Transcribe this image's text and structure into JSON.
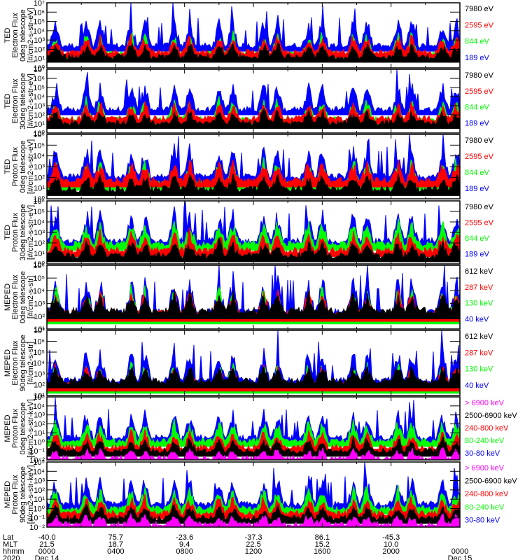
{
  "chart_data": {
    "type": "line",
    "title": "",
    "x_rows": [
      {
        "name": "Lat",
        "values": [
          "-40.0",
          "75.7",
          "-23.6",
          "-37.3",
          "86.1",
          "-45.3",
          ""
        ]
      },
      {
        "name": "MLT",
        "values": [
          "21.5",
          "18.7",
          "9.4",
          "22.5",
          "15.2",
          "10.0",
          ""
        ]
      },
      {
        "name": "hhmm",
        "values": [
          "0000",
          "0400",
          "0800",
          "1200",
          "1600",
          "2000",
          "0000"
        ]
      },
      {
        "name": "2020",
        "values": [
          "Dec 14",
          "",
          "",
          "",
          "",
          "",
          "Dec 15"
        ]
      }
    ],
    "x_hours": [
      0,
      4,
      8,
      12,
      16,
      20,
      24
    ],
    "xlim": [
      0,
      24
    ],
    "panels": [
      {
        "ylabel": [
          "TED",
          "Electron Flux",
          "0deg telescope",
          "[#/cm2-s-str-eV]"
        ],
        "ylim_exp": [
          0,
          7
        ],
        "ticks": [
          "10⁰",
          "10¹",
          "10²",
          "10³",
          "10⁴",
          "10⁵",
          "10⁶",
          "10⁷"
        ],
        "legend": [
          {
            "label": "7980 eV",
            "color": "#000000"
          },
          {
            "label": "2595 eV",
            "color": "#ff0000"
          },
          {
            "label": "844 eV",
            "color": "#00ff00"
          },
          {
            "label": "189 eV",
            "color": "#0000ff"
          }
        ],
        "base": {
          "blue": 2.4,
          "green": 1.5,
          "red": 1.7,
          "black": 1.2
        }
      },
      {
        "ylabel": [
          "TED",
          "Electron Flux",
          "30deg telescope",
          "[#/cm2-s-str-eV]"
        ],
        "ylim_exp": [
          0,
          7
        ],
        "ticks": [
          "10⁰",
          "10¹",
          "10²",
          "10³",
          "10⁴",
          "10⁵",
          "10⁶",
          "10⁷"
        ],
        "legend": [
          {
            "label": "7980 eV",
            "color": "#000000"
          },
          {
            "label": "2595 eV",
            "color": "#ff0000"
          },
          {
            "label": "844 eV",
            "color": "#00ff00"
          },
          {
            "label": "189 eV",
            "color": "#0000ff"
          }
        ],
        "base": {
          "blue": 2.6,
          "green": 1.5,
          "red": 1.6,
          "black": 1.1
        }
      },
      {
        "ylabel": [
          "TED",
          "Proton Flux",
          "0deg telescope",
          "[#/cm2-s-str-eV]"
        ],
        "ylim_exp": [
          0,
          6
        ],
        "ticks": [
          "10⁰",
          "10¹",
          "10²",
          "10³",
          "10⁴",
          "10⁵",
          "10⁶"
        ],
        "legend": [
          {
            "label": "7980 eV",
            "color": "#000000"
          },
          {
            "label": "2595 eV",
            "color": "#ff0000"
          },
          {
            "label": "844 eV",
            "color": "#00ff00"
          },
          {
            "label": "189 eV",
            "color": "#0000ff"
          }
        ],
        "base": {
          "blue": 2.1,
          "green": 1.4,
          "red": 1.7,
          "black": 0.9
        }
      },
      {
        "ylabel": [
          "TED",
          "Proton Flux",
          "30deg telescope",
          "[#/cm2-s-str-eV]"
        ],
        "ylim_exp": [
          0,
          6
        ],
        "ticks": [
          "10⁰",
          "10¹",
          "10²",
          "10³",
          "10⁴",
          "10⁵",
          "10⁶"
        ],
        "legend": [
          {
            "label": "7980 eV",
            "color": "#000000"
          },
          {
            "label": "2595 eV",
            "color": "#ff0000"
          },
          {
            "label": "844 eV",
            "color": "#00ff00"
          },
          {
            "label": "189 eV",
            "color": "#0000ff"
          }
        ],
        "base": {
          "blue": 2.2,
          "green": 1.9,
          "red": 1.3,
          "black": 0.8
        }
      },
      {
        "ylabel": [
          "MEPED",
          "Electron Flux",
          "0deg telescope",
          "[#/cm2-s-str]"
        ],
        "ylim_exp": [
          1,
          6
        ],
        "ticks": [
          "10¹",
          "10²",
          "10³",
          "10⁴",
          "10⁵",
          "10⁶"
        ],
        "legend": [
          {
            "label": "612 keV",
            "color": "#000000"
          },
          {
            "label": "287 keV",
            "color": "#ff0000"
          },
          {
            "label": "130 keV",
            "color": "#00ff00"
          },
          {
            "label": "40 keV",
            "color": "#0000ff"
          }
        ],
        "base": {
          "blue": 2.3,
          "green": 2.0,
          "red": 2.2,
          "black": 2.4
        }
      },
      {
        "ylabel": [
          "MEPED",
          "Electron Flux",
          "90deg telescope",
          "[#/cm2-s-str]"
        ],
        "ylim_exp": [
          1,
          7
        ],
        "ticks": [
          "10¹",
          "10²",
          "10³",
          "10⁴",
          "10⁵",
          "10⁶",
          "10⁷"
        ],
        "legend": [
          {
            "label": "612 keV",
            "color": "#000000"
          },
          {
            "label": "287 keV",
            "color": "#ff0000"
          },
          {
            "label": "130 keV",
            "color": "#00ff00"
          },
          {
            "label": "40 keV",
            "color": "#0000ff"
          }
        ],
        "base": {
          "blue": 2.4,
          "green": 1.8,
          "red": 2.0,
          "black": 2.3
        }
      },
      {
        "ylabel": [
          "MEPED",
          "Proton Flux",
          "0deg telescope",
          "[#/cm2-s-str-keV]"
        ],
        "ylim_exp": [
          -2,
          5
        ],
        "ticks": [
          "10⁻²",
          "10⁻¹",
          "10⁰",
          "10¹",
          "10²",
          "10³",
          "10⁴",
          "10⁵"
        ],
        "legend": [
          {
            "label": "> 6900 keV",
            "color": "#ff00ff"
          },
          {
            "label": "2500-6900 keV",
            "color": "#000000"
          },
          {
            "label": "240-800 keV",
            "color": "#ff0000"
          },
          {
            "label": "80-240 keV",
            "color": "#00ff00"
          },
          {
            "label": "30-80 keV",
            "color": "#0000ff"
          }
        ],
        "base": {
          "blue": 0.5,
          "green": 0.1,
          "red": -0.6,
          "black": -1.0,
          "magenta": -1.8
        }
      },
      {
        "ylabel": [
          "MEPED",
          "Proton Flux",
          "90deg telescope",
          "[#/cm2-s-str-keV]"
        ],
        "ylim_exp": [
          -2,
          5
        ],
        "ticks": [
          "10⁻²",
          "10⁻¹",
          "10⁰",
          "10¹",
          "10²",
          "10³",
          "10⁴",
          "10⁵"
        ],
        "legend": [
          {
            "label": "> 6900 keV",
            "color": "#ff00ff"
          },
          {
            "label": "2500-6900 keV",
            "color": "#000000"
          },
          {
            "label": "240-800 keV",
            "color": "#ff0000"
          },
          {
            "label": "80-240 keV",
            "color": "#00ff00"
          },
          {
            "label": "30-80 keV",
            "color": "#0000ff"
          }
        ],
        "base": {
          "blue": 0.5,
          "green": 0.0,
          "red": -0.5,
          "black": -1.0,
          "magenta": -1.7
        }
      }
    ],
    "peak_hours": [
      0.5,
      2.3,
      3.1,
      4.9,
      5.7,
      7.4,
      8.3,
      10.0,
      10.8,
      12.6,
      13.4,
      15.2,
      16.0,
      17.8,
      18.6,
      20.4,
      21.2,
      23.0,
      23.8
    ],
    "grid": false
  }
}
